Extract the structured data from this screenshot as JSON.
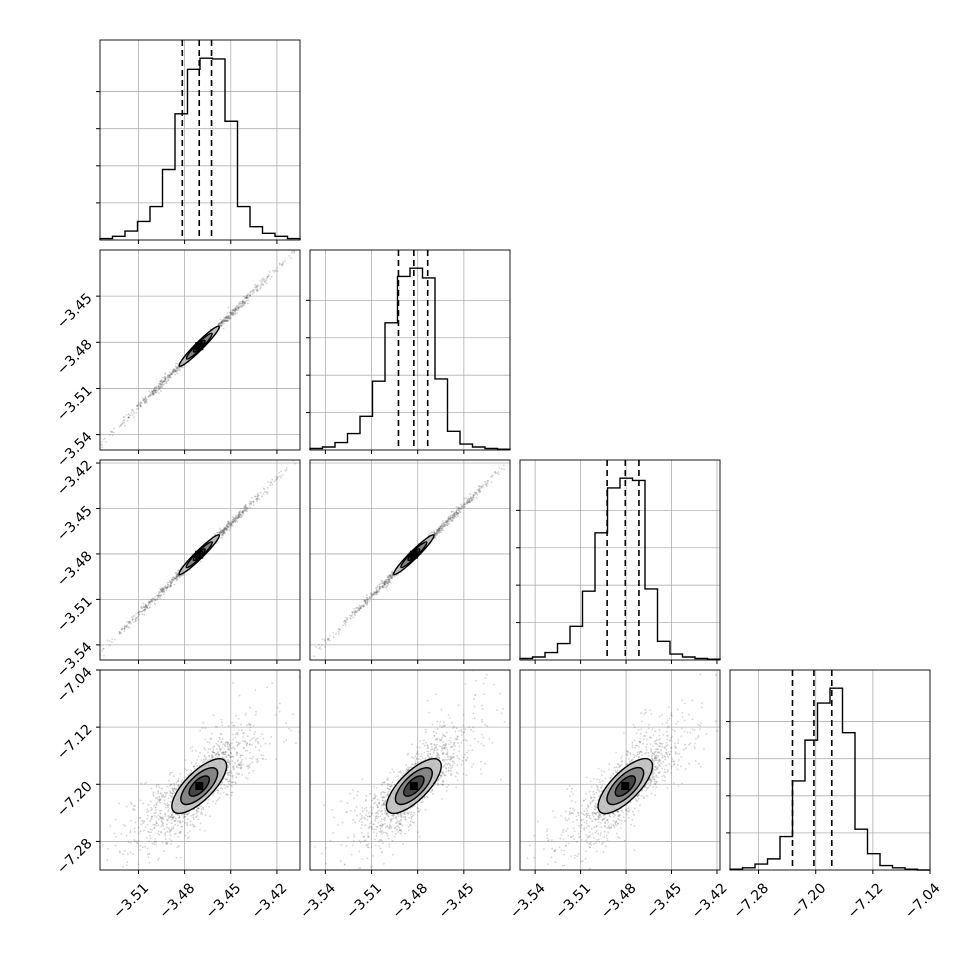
{
  "chart_data": {
    "type": "corner",
    "colors": {
      "line": "#000000",
      "grid": "#b0b0b0",
      "frame": "#000000",
      "points": "#555555",
      "contour_fill_outer": "#bdbdbd",
      "contour_fill_mid": "#7a7a7a",
      "contour_fill_inner": "#3a3a3a"
    },
    "grid": true,
    "axes": [
      {
        "name": "param_1",
        "xlim": [
          -3.535,
          -3.405
        ],
        "x_ticks": [
          -3.51,
          -3.48,
          -3.45,
          -3.42
        ],
        "x_tick_labels": [
          "−3.51",
          "−3.48",
          "−3.45",
          "−3.42"
        ]
      },
      {
        "name": "param_2",
        "range": [
          -3.55,
          -3.42
        ],
        "ticks": [
          -3.54,
          -3.51,
          -3.48,
          -3.45
        ],
        "tick_labels": [
          "−3.54",
          "−3.51",
          "−3.48",
          "−3.45"
        ]
      },
      {
        "name": "param_3",
        "range": [
          -3.55,
          -3.418
        ],
        "ticks": [
          -3.54,
          -3.51,
          -3.48,
          -3.45,
          -3.42
        ],
        "tick_labels": [
          "−3.54",
          "−3.51",
          "−3.48",
          "−3.45",
          "−3.42"
        ]
      },
      {
        "name": "param_4",
        "range": [
          -7.32,
          -7.04
        ],
        "ticks": [
          -7.28,
          -7.2,
          -7.12,
          -7.04
        ],
        "tick_labels": [
          "−7.28",
          "−7.20",
          "−7.12",
          "−7.04"
        ]
      }
    ],
    "diagonal_histograms": [
      {
        "quantiles": [
          -3.4815,
          -3.4705,
          -3.4625
        ],
        "bin_edges_range": [
          -3.535,
          -3.405
        ],
        "counts": [
          2,
          5,
          12,
          25,
          45,
          95,
          170,
          230,
          245,
          244,
          160,
          45,
          18,
          9,
          5,
          2
        ],
        "y_ticks_counts": [
          50,
          100,
          150,
          200
        ]
      },
      {
        "quantiles": [
          -3.4925,
          -3.4825,
          -3.4735
        ],
        "bin_edges_range": [
          -3.55,
          -3.42
        ],
        "counts": [
          2,
          4,
          10,
          22,
          45,
          92,
          170,
          232,
          243,
          230,
          95,
          25,
          8,
          4,
          2,
          1
        ],
        "y_ticks_counts": [
          50,
          100,
          150,
          200
        ]
      },
      {
        "quantiles": [
          -3.4925,
          -3.4805,
          -3.4715
        ],
        "bin_edges_range": [
          -3.55,
          -3.418
        ],
        "counts": [
          2,
          4,
          10,
          22,
          45,
          92,
          170,
          230,
          243,
          240,
          95,
          25,
          8,
          4,
          2,
          1
        ],
        "y_ticks_counts": [
          50,
          100,
          150,
          200
        ]
      },
      {
        "quantiles": [
          -7.2325,
          -7.2025,
          -7.1775
        ],
        "bin_edges_range": [
          -7.32,
          -7.04
        ],
        "counts": [
          1,
          3,
          8,
          15,
          45,
          120,
          175,
          225,
          245,
          185,
          55,
          22,
          6,
          3,
          1,
          0
        ],
        "y_ticks_counts": [
          50,
          100,
          150,
          200
        ]
      }
    ],
    "pair_panels": [
      {
        "row": 1,
        "col": 0,
        "center": [
          -3.4705,
          -3.4825
        ],
        "slope": 1.0,
        "width_frac": 0.003
      },
      {
        "row": 2,
        "col": 0,
        "center": [
          -3.4705,
          -3.4805
        ],
        "slope": 1.0,
        "width_frac": 0.003
      },
      {
        "row": 2,
        "col": 1,
        "center": [
          -3.4825,
          -3.4805
        ],
        "slope": 1.0,
        "width_frac": 0.003
      },
      {
        "row": 3,
        "col": 0,
        "center": [
          -3.4705,
          -7.2025
        ],
        "slope": 2.15,
        "width_frac": 0.035
      },
      {
        "row": 3,
        "col": 1,
        "center": [
          -3.4825,
          -7.2025
        ],
        "slope": 2.15,
        "width_frac": 0.035
      },
      {
        "row": 3,
        "col": 2,
        "center": [
          -3.4805,
          -7.2025
        ],
        "slope": 2.15,
        "width_frac": 0.035
      }
    ]
  }
}
